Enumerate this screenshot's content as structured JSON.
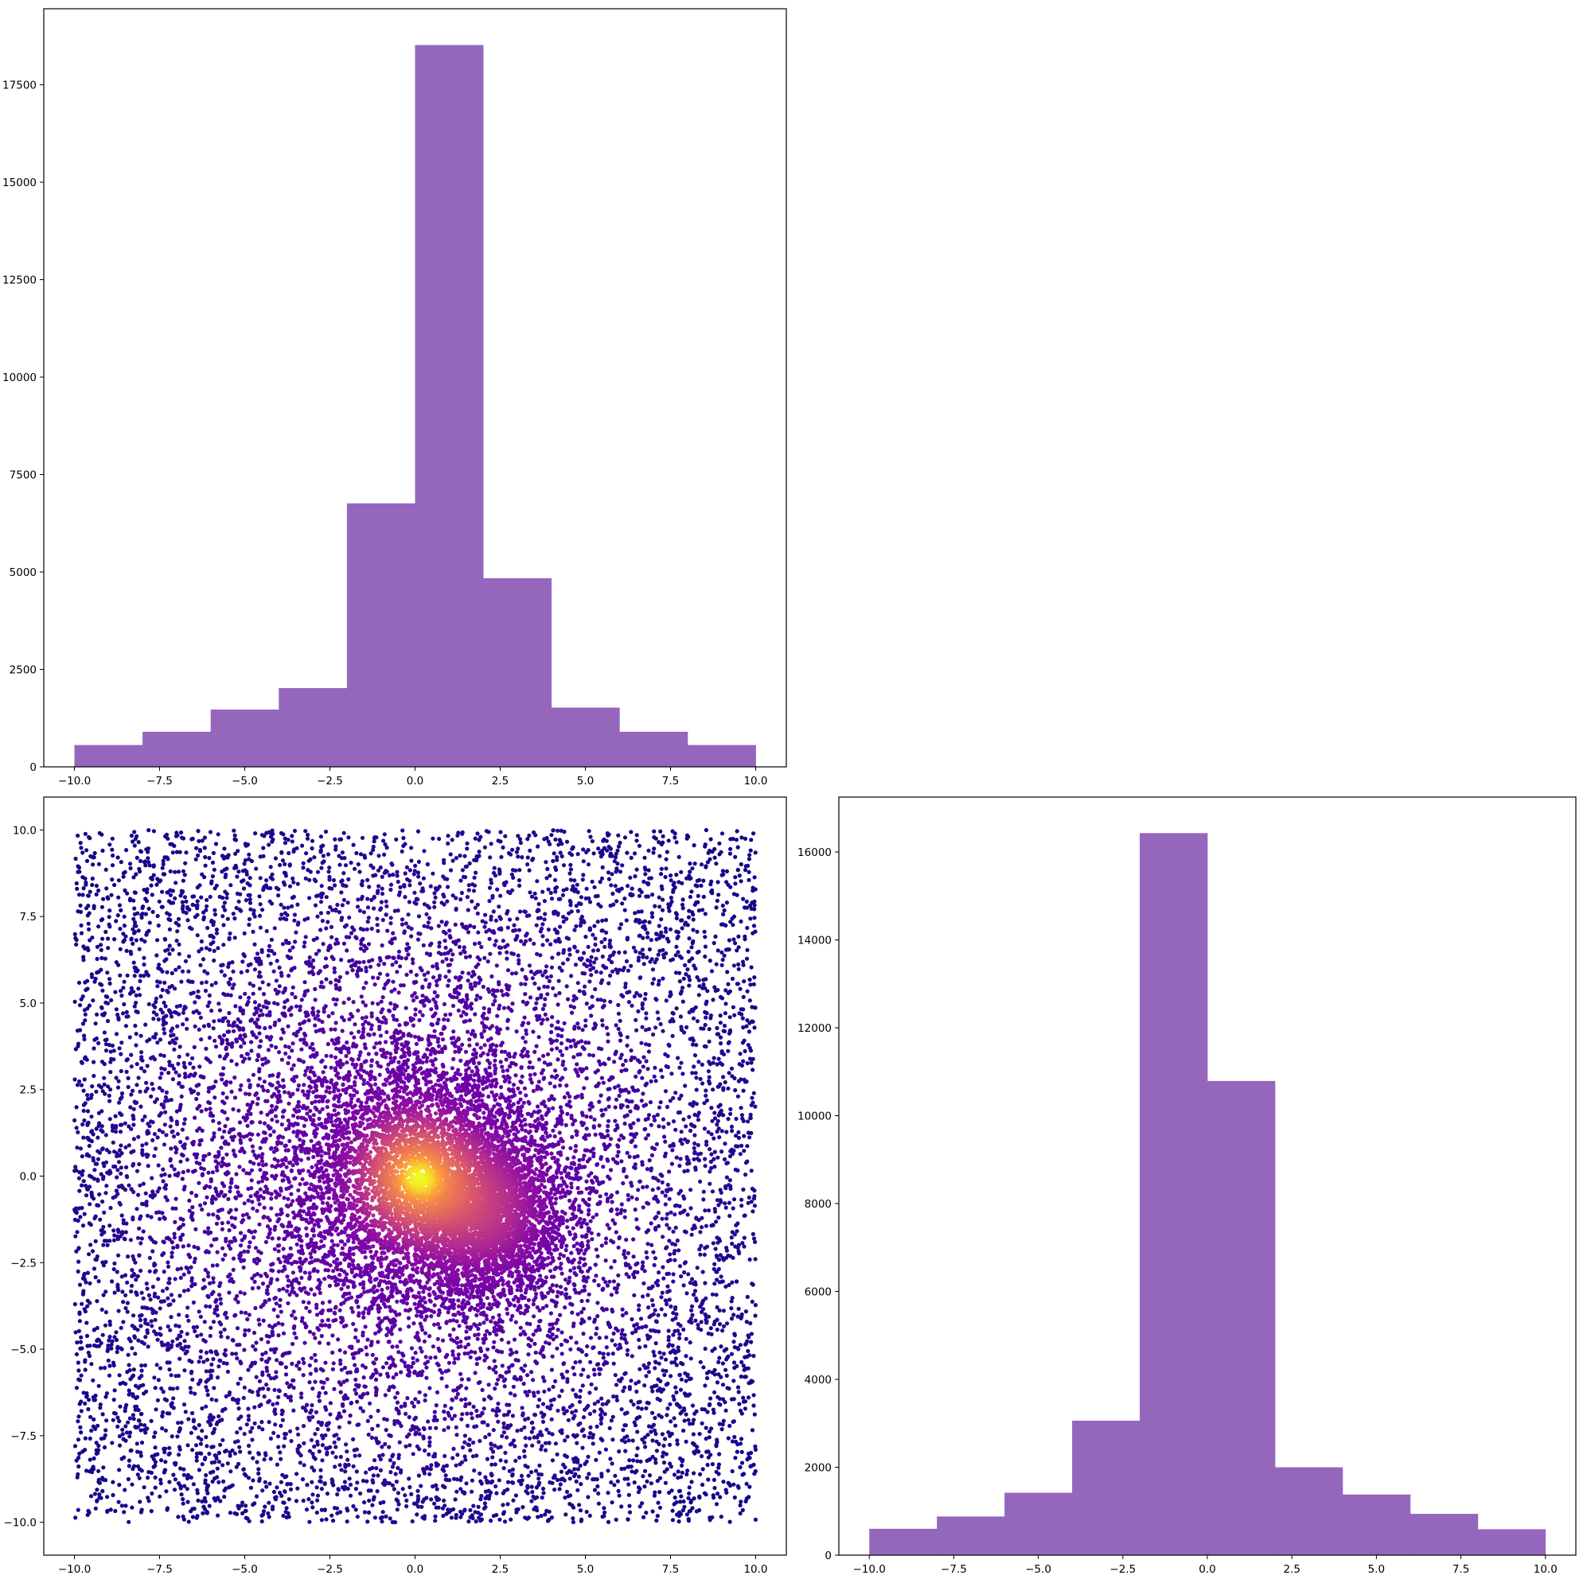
{
  "colors": {
    "bar_fill": "#9467bd",
    "axes_edge": "#000000",
    "scatter_colormap": "plasma"
  },
  "chart_data": [
    {
      "id": "hist_top",
      "type": "bar",
      "bin_edges": [
        -10,
        -8,
        -6,
        -4,
        -2,
        0,
        2,
        4,
        6,
        8,
        10
      ],
      "values": [
        560,
        900,
        1470,
        2020,
        6760,
        18520,
        4840,
        1520,
        900,
        560
      ],
      "xlim": [
        -10.9,
        10.9
      ],
      "ylim": [
        0,
        19450
      ],
      "xticks": [
        -10,
        -7.5,
        -5,
        -2.5,
        0,
        2.5,
        5,
        7.5,
        10
      ],
      "xtick_labels": [
        "−10.0",
        "−7.5",
        "−5.0",
        "−2.5",
        "0.0",
        "2.5",
        "5.0",
        "7.5",
        "10.0"
      ],
      "yticks": [
        0,
        2500,
        5000,
        7500,
        10000,
        12500,
        15000,
        17500
      ],
      "ytick_labels": [
        "0",
        "2500",
        "5000",
        "7500",
        "10000",
        "12500",
        "15000",
        "17500"
      ],
      "grid": false
    },
    {
      "id": "scatter",
      "type": "scatter",
      "xlim": [
        -10.9,
        10.9
      ],
      "ylim": [
        -10.95,
        10.95
      ],
      "uniform_range": [
        -10,
        10
      ],
      "clusters": [
        {
          "center": [
            0.0,
            0.0
          ],
          "spread": 2.0
        },
        {
          "center": [
            2.0,
            -1.0
          ],
          "spread": 1.2
        }
      ],
      "color_scale": "point density (plasma)",
      "xticks": [
        -10,
        -7.5,
        -5,
        -2.5,
        0,
        2.5,
        5,
        7.5,
        10
      ],
      "xtick_labels": [
        "−10.0",
        "−7.5",
        "−5.0",
        "−2.5",
        "0.0",
        "2.5",
        "5.0",
        "7.5",
        "10.0"
      ],
      "yticks": [
        -10,
        -7.5,
        -5,
        -2.5,
        0,
        2.5,
        5,
        7.5,
        10
      ],
      "ytick_labels": [
        "−10.0",
        "−7.5",
        "−5.0",
        "−2.5",
        "0.0",
        "2.5",
        "5.0",
        "7.5",
        "10.0"
      ],
      "grid": false
    },
    {
      "id": "hist_right",
      "type": "bar",
      "bin_edges": [
        -10,
        -8,
        -6,
        -4,
        -2,
        0,
        2,
        4,
        6,
        8,
        10
      ],
      "values": [
        600,
        880,
        1420,
        3060,
        16430,
        10790,
        2000,
        1380,
        940,
        590
      ],
      "xlim": [
        -10.9,
        10.9
      ],
      "ylim": [
        0,
        17250
      ],
      "xticks": [
        -10,
        -7.5,
        -5,
        -2.5,
        0,
        2.5,
        5,
        7.5,
        10
      ],
      "xtick_labels": [
        "−10.0",
        "−7.5",
        "−5.0",
        "−2.5",
        "0.0",
        "2.5",
        "5.0",
        "7.5",
        "10.0"
      ],
      "yticks": [
        0,
        2000,
        4000,
        6000,
        8000,
        10000,
        12000,
        14000,
        16000
      ],
      "ytick_labels": [
        "0",
        "2000",
        "4000",
        "6000",
        "8000",
        "10000",
        "12000",
        "14000",
        "16000"
      ],
      "grid": false
    }
  ]
}
